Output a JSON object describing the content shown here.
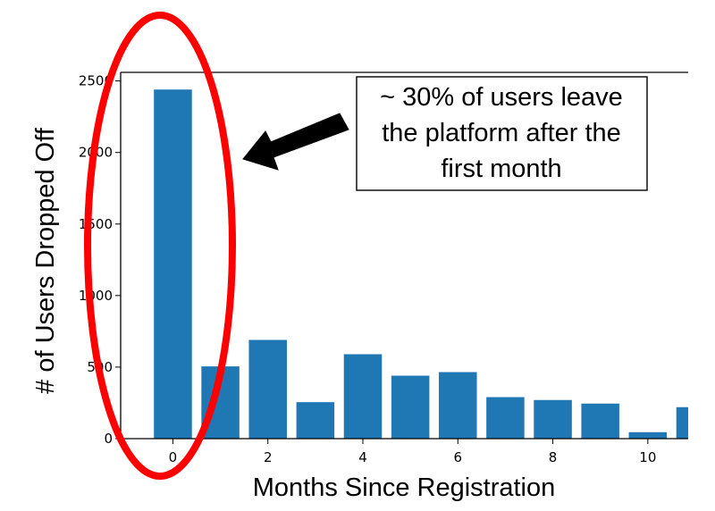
{
  "chart_data": {
    "type": "bar",
    "title": "",
    "xlabel": "Months Since Registration",
    "ylabel": "# of Users Dropped Off",
    "x": [
      0,
      1,
      2,
      3,
      4,
      5,
      6,
      7,
      8,
      9,
      10,
      11
    ],
    "values": [
      2440,
      505,
      690,
      255,
      590,
      440,
      465,
      290,
      270,
      245,
      45,
      220
    ],
    "xlim": [
      -1.1,
      10.85
    ],
    "ylim": [
      0,
      2560
    ],
    "xticks": [
      0,
      2,
      4,
      6,
      8,
      10
    ],
    "yticks": [
      0,
      500,
      1000,
      1500,
      2000,
      2500
    ],
    "bar_color": "#1f77b4",
    "grid": false,
    "legend": "none",
    "annotation": {
      "lines": [
        "~ 30% of users leave",
        "the platform after the",
        "first month"
      ],
      "arrow_color": "#000000",
      "highlight_color": "#ff0000"
    }
  }
}
